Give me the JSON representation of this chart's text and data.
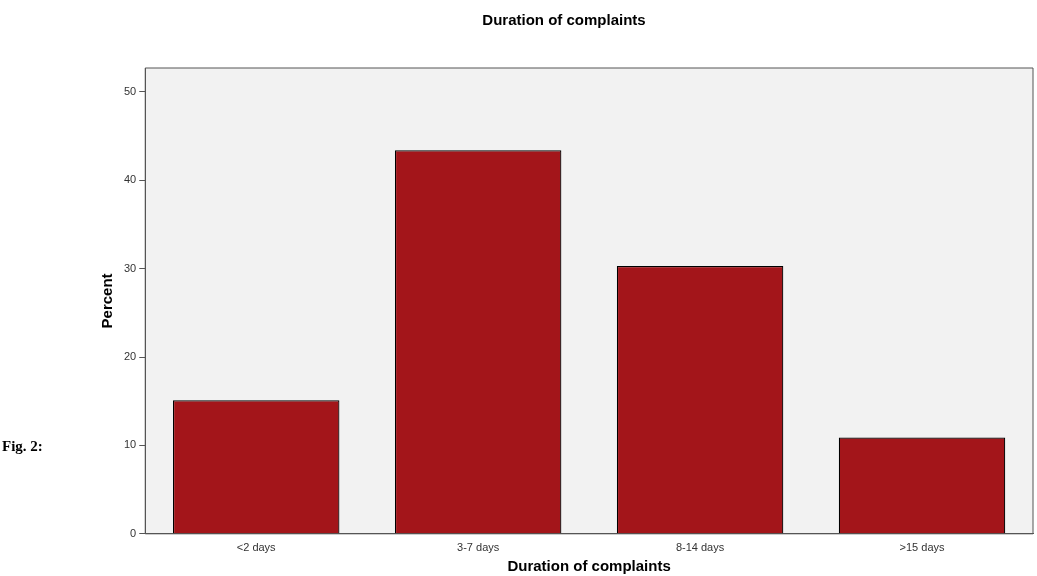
{
  "chart_data": {
    "type": "bar",
    "title": "Duration of complaints",
    "xlabel": "Duration of complaints",
    "ylabel": "Percent",
    "categories": [
      "<2 days",
      "3-7 days",
      "8-14 days",
      ">15 days"
    ],
    "values": [
      15.1,
      43.4,
      30.3,
      10.9
    ],
    "color": "#a3151a",
    "ylim": [
      0,
      52.7
    ],
    "yticks": [
      0,
      10,
      20,
      30,
      40,
      50
    ],
    "grid": false,
    "legend": false,
    "annotations": [
      "Fig. 2:"
    ]
  }
}
